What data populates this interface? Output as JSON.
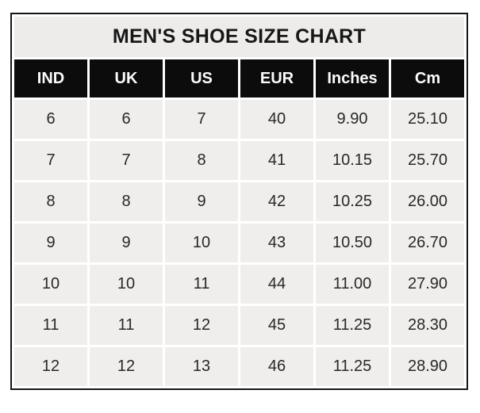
{
  "chart_data": {
    "type": "table",
    "title": "MEN'S SHOE SIZE CHART",
    "columns": [
      "IND",
      "UK",
      "US",
      "EUR",
      "Inches",
      "Cm"
    ],
    "rows": [
      [
        "6",
        "6",
        "7",
        "40",
        "9.90",
        "25.10"
      ],
      [
        "7",
        "7",
        "8",
        "41",
        "10.15",
        "25.70"
      ],
      [
        "8",
        "8",
        "9",
        "42",
        "10.25",
        "26.00"
      ],
      [
        "9",
        "9",
        "10",
        "43",
        "10.50",
        "26.70"
      ],
      [
        "10",
        "10",
        "11",
        "44",
        "11.00",
        "27.90"
      ],
      [
        "11",
        "11",
        "12",
        "45",
        "11.25",
        "28.30"
      ],
      [
        "12",
        "12",
        "13",
        "46",
        "11.25",
        "28.90"
      ]
    ],
    "layout_hints": {
      "title_row_background": "#edecea",
      "header_background": "#0c0c0c",
      "header_text_color": "#ffffff",
      "cell_background": "#efeeec",
      "cell_text_color": "#282828",
      "separator_color": "#ffffff",
      "outer_border_color": "#161616"
    }
  }
}
